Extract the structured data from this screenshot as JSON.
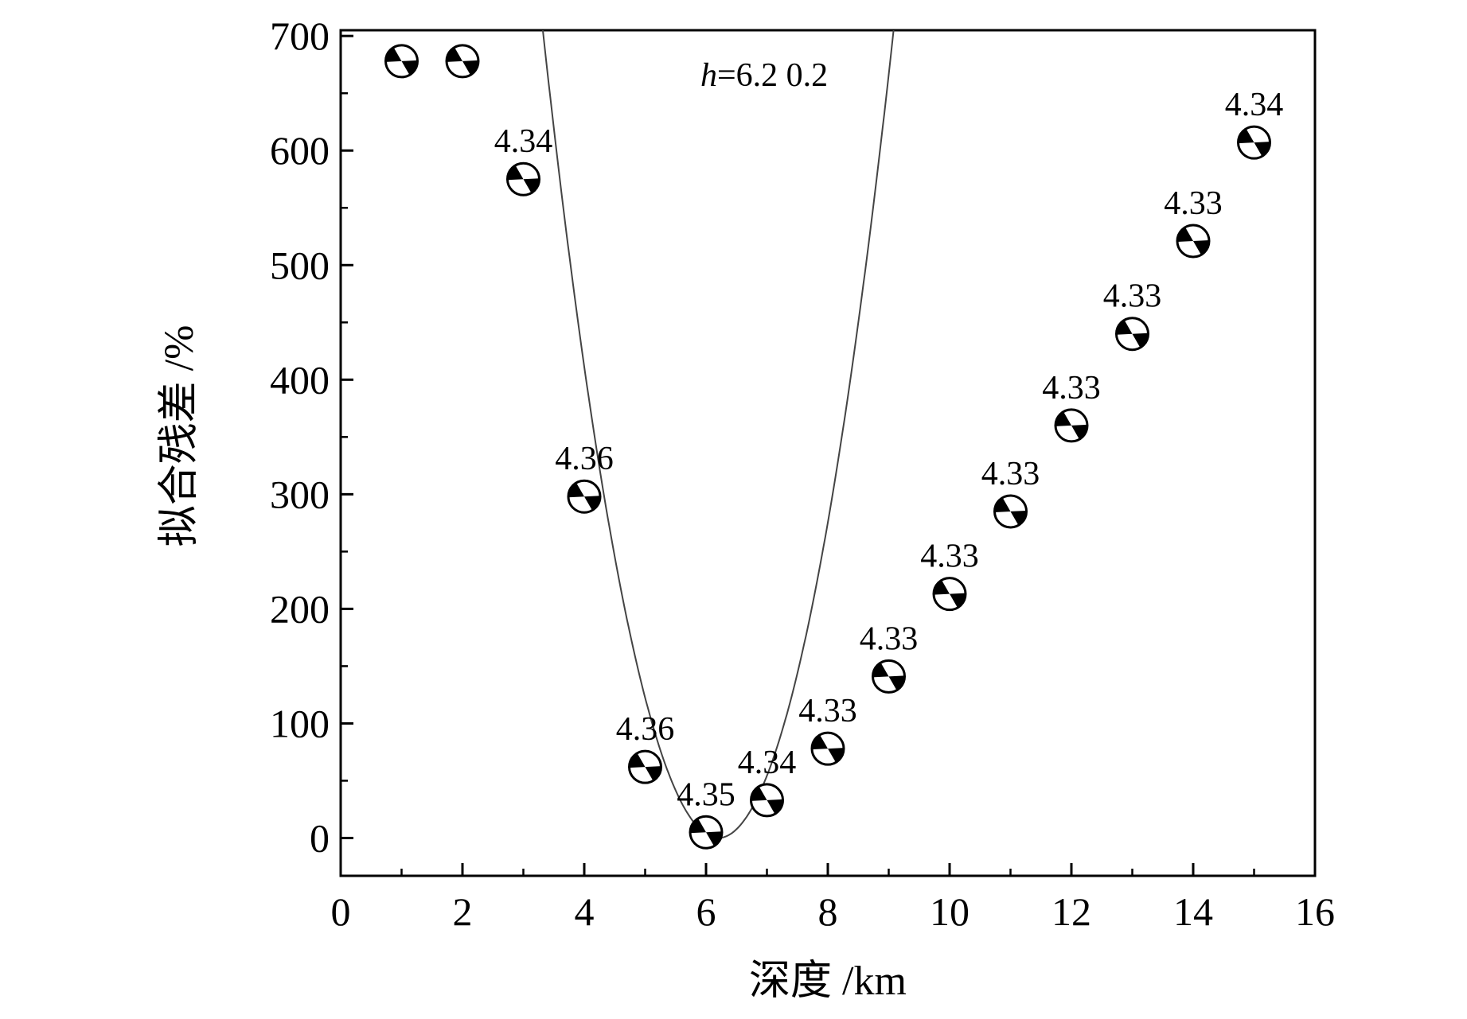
{
  "chart_data": {
    "type": "scatter",
    "title": "",
    "xlabel": "深度 /km",
    "ylabel": "拟合残差 /%",
    "xlim": [
      0,
      16
    ],
    "ylim": [
      -33,
      705
    ],
    "x_ticks": [
      "0",
      "2",
      "4",
      "6",
      "8",
      "10",
      "12",
      "14",
      "16"
    ],
    "y_ticks": [
      "0",
      "100",
      "200",
      "300",
      "400",
      "500",
      "600",
      "700"
    ],
    "annotation": {
      "italic": "h",
      "text": "=6.2 0.2"
    },
    "series": [
      {
        "points": [
          {
            "x": 1,
            "y": 678,
            "label": ""
          },
          {
            "x": 2,
            "y": 678,
            "label": ""
          },
          {
            "x": 3,
            "y": 575,
            "label": "4.34"
          },
          {
            "x": 4,
            "y": 298,
            "label": "4.36"
          },
          {
            "x": 5,
            "y": 62,
            "label": "4.36"
          },
          {
            "x": 6,
            "y": 5,
            "label": "4.35"
          },
          {
            "x": 7,
            "y": 33,
            "label": "4.34"
          },
          {
            "x": 8,
            "y": 78,
            "label": "4.33"
          },
          {
            "x": 9,
            "y": 141,
            "label": "4.33"
          },
          {
            "x": 10,
            "y": 213,
            "label": "4.33"
          },
          {
            "x": 11,
            "y": 285,
            "label": "4.33"
          },
          {
            "x": 12,
            "y": 360,
            "label": "4.33"
          },
          {
            "x": 13,
            "y": 440,
            "label": "4.33"
          },
          {
            "x": 14,
            "y": 521,
            "label": "4.33"
          },
          {
            "x": 15,
            "y": 607,
            "label": "4.34"
          }
        ]
      }
    ],
    "fit_curve": {
      "type": "parabola",
      "vertex_x": 6.2,
      "vertex_y": 0,
      "coef": 85
    },
    "grid": false,
    "legend": "none"
  }
}
